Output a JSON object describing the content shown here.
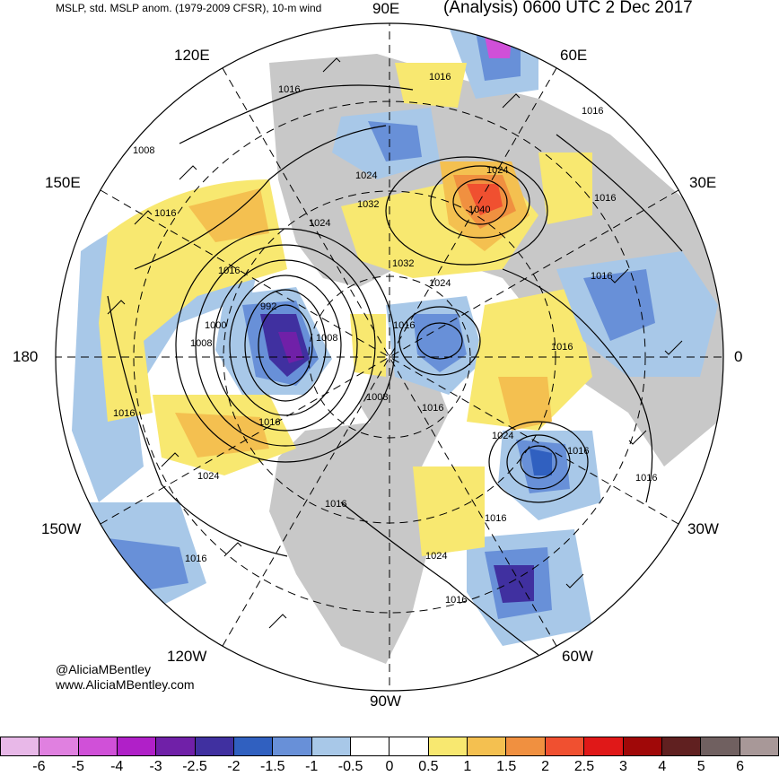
{
  "header": {
    "left_title": "MSLP, std. MSLP anom. (1979-2009 CFSR), 10-m wind",
    "right_title": "(Analysis) 0600 UTC 2 Dec 2017"
  },
  "longitude_labels": {
    "lon_90e": "90E",
    "lon_60e": "60E",
    "lon_120e": "120E",
    "lon_150e": "150E",
    "lon_30e": "30E",
    "lon_180": "180",
    "lon_0": "0",
    "lon_150w": "150W",
    "lon_30w": "30W",
    "lon_120w": "120W",
    "lon_60w": "60W",
    "lon_90w": "90W"
  },
  "isobar_labels": [
    "1016",
    "1016",
    "1016",
    "1008",
    "1024",
    "1024",
    "1016",
    "1032",
    "1024",
    "1040",
    "1016",
    "1016",
    "1032",
    "1024",
    "992",
    "1000",
    "1008",
    "1008",
    "1016",
    "1016",
    "1016",
    "1008",
    "1016",
    "1024",
    "1016",
    "1016",
    "1024",
    "1016",
    "1016",
    "1016",
    "1016",
    "1024",
    "1016",
    "1016"
  ],
  "credits": {
    "handle": "@AliciaMBentley",
    "site": "www.AliciaMBentley.com"
  },
  "colorbar": {
    "colors": [
      "#e8b8e8",
      "#e080e0",
      "#d050d8",
      "#b020c8",
      "#7020a8",
      "#4030a0",
      "#3060c0",
      "#6890d8",
      "#a8c8e8",
      "#ffffff",
      "#ffffff",
      "#f8e870",
      "#f4c050",
      "#f09040",
      "#f05030",
      "#e01818",
      "#a00808",
      "#602020",
      "#706060",
      "#a89898"
    ],
    "ticks": [
      "-6",
      "-5",
      "-4",
      "-3",
      "-2.5",
      "-2",
      "-1.5",
      "-1",
      "-0.5",
      "0",
      "0.5",
      "1",
      "1.5",
      "2",
      "2.5",
      "3",
      "4",
      "5",
      "6"
    ]
  }
}
